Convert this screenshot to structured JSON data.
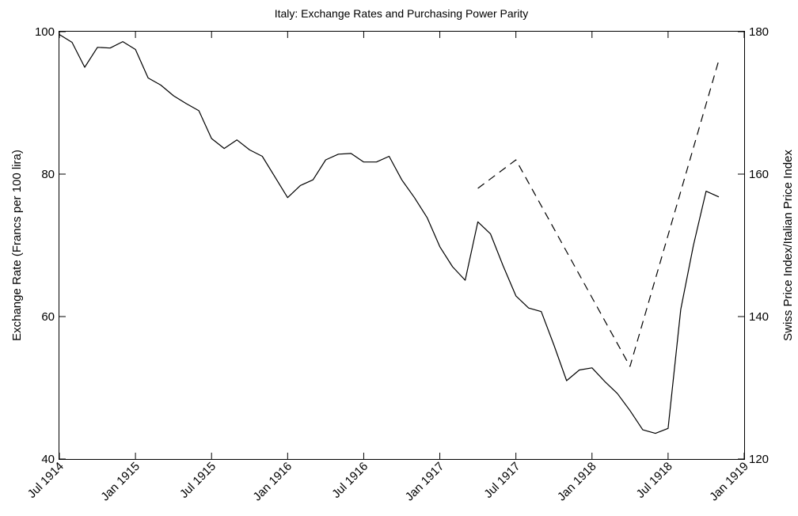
{
  "chart_data": {
    "type": "line",
    "title": "Italy: Exchange Rates and Purchasing Power Parity",
    "xlabel": "",
    "ylabel": "Exchange Rate (Francs per 100 lira)",
    "y2label": "Swiss Price Index/Italian Price Index",
    "x_range": [
      "1914-07",
      "1919-01"
    ],
    "x_ticks": [
      "Jul 1914",
      "Jan 1915",
      "Jul 1915",
      "Jan 1916",
      "Jul 1916",
      "Jan 1917",
      "Jul 1917",
      "Jan 1918",
      "Jul 1918",
      "Jan 1919"
    ],
    "ylim": [
      40,
      100
    ],
    "y_ticks": [
      40,
      60,
      80,
      100
    ],
    "y2lim": [
      120,
      180
    ],
    "y2_ticks": [
      120,
      140,
      160,
      180
    ],
    "grid": false,
    "series": [
      {
        "axis": "left",
        "style": "solid",
        "color": "#000000",
        "x": [
          "1914-07",
          "1914-08",
          "1914-09",
          "1914-10",
          "1914-11",
          "1914-12",
          "1915-01",
          "1915-02",
          "1915-03",
          "1915-04",
          "1915-05",
          "1915-06",
          "1915-07",
          "1915-08",
          "1915-09",
          "1915-10",
          "1915-11",
          "1915-12",
          "1916-01",
          "1916-02",
          "1916-03",
          "1916-04",
          "1916-05",
          "1916-06",
          "1916-07",
          "1916-08",
          "1916-09",
          "1916-10",
          "1916-11",
          "1916-12",
          "1917-01",
          "1917-02",
          "1917-03",
          "1917-04",
          "1917-05",
          "1917-06",
          "1917-07",
          "1917-08",
          "1917-09",
          "1917-10",
          "1917-11",
          "1917-12",
          "1918-01",
          "1918-02",
          "1918-03",
          "1918-04",
          "1918-05",
          "1918-06",
          "1918-07",
          "1918-08",
          "1918-09",
          "1918-10",
          "1918-11"
        ],
        "values": [
          99.6,
          98.5,
          95.0,
          97.8,
          97.7,
          98.6,
          97.5,
          93.5,
          92.5,
          91.0,
          89.9,
          88.9,
          85.0,
          83.6,
          84.8,
          83.4,
          82.5,
          79.6,
          76.7,
          78.4,
          79.2,
          82.0,
          82.8,
          82.9,
          81.7,
          81.7,
          82.5,
          79.2,
          76.7,
          73.9,
          69.8,
          67.0,
          65.1,
          73.3,
          71.6,
          67.1,
          62.9,
          61.2,
          60.7,
          56.0,
          51.0,
          52.5,
          52.8,
          50.9,
          49.2,
          46.8,
          44.1,
          43.6,
          44.3,
          61.0,
          70.0,
          77.6,
          76.8
        ]
      },
      {
        "axis": "right",
        "style": "dashed",
        "color": "#000000",
        "x": [
          "1917-04",
          "1917-07",
          "1918-04",
          "1918-11"
        ],
        "values": [
          158,
          162,
          133,
          176
        ]
      }
    ]
  }
}
